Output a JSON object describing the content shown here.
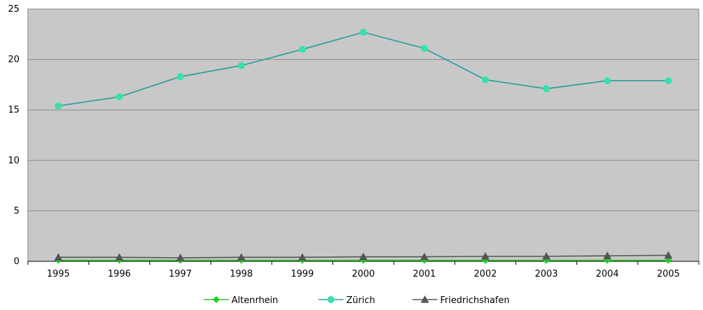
{
  "chart_data": {
    "type": "line",
    "title": "",
    "xlabel": "",
    "ylabel": "",
    "categories": [
      "1995",
      "1996",
      "1997",
      "1998",
      "1999",
      "2000",
      "2001",
      "2002",
      "2003",
      "2004",
      "2005"
    ],
    "ylim": [
      0,
      25
    ],
    "yticks": [
      "0",
      "5",
      "10",
      "15",
      "20",
      "25"
    ],
    "grid": "horizontal",
    "legend_position": "bottom",
    "series": [
      {
        "name": "Altenrhein",
        "color": "#22cc22",
        "marker": "diamond",
        "values": [
          0.1,
          0.1,
          0.1,
          0.1,
          0.1,
          0.1,
          0.1,
          0.1,
          0.1,
          0.1,
          0.1
        ]
      },
      {
        "name": "Zürich",
        "color": "#33e3a8",
        "line_color": "#2a9a9a",
        "marker": "circle",
        "values": [
          15.4,
          16.3,
          18.3,
          19.4,
          21.0,
          22.7,
          21.1,
          18.0,
          17.1,
          17.9,
          17.9
        ]
      },
      {
        "name": "Friedrichshafen",
        "color": "#555555",
        "marker": "triangle",
        "values": [
          0.4,
          0.4,
          0.35,
          0.4,
          0.4,
          0.45,
          0.45,
          0.5,
          0.5,
          0.55,
          0.6
        ]
      }
    ]
  }
}
